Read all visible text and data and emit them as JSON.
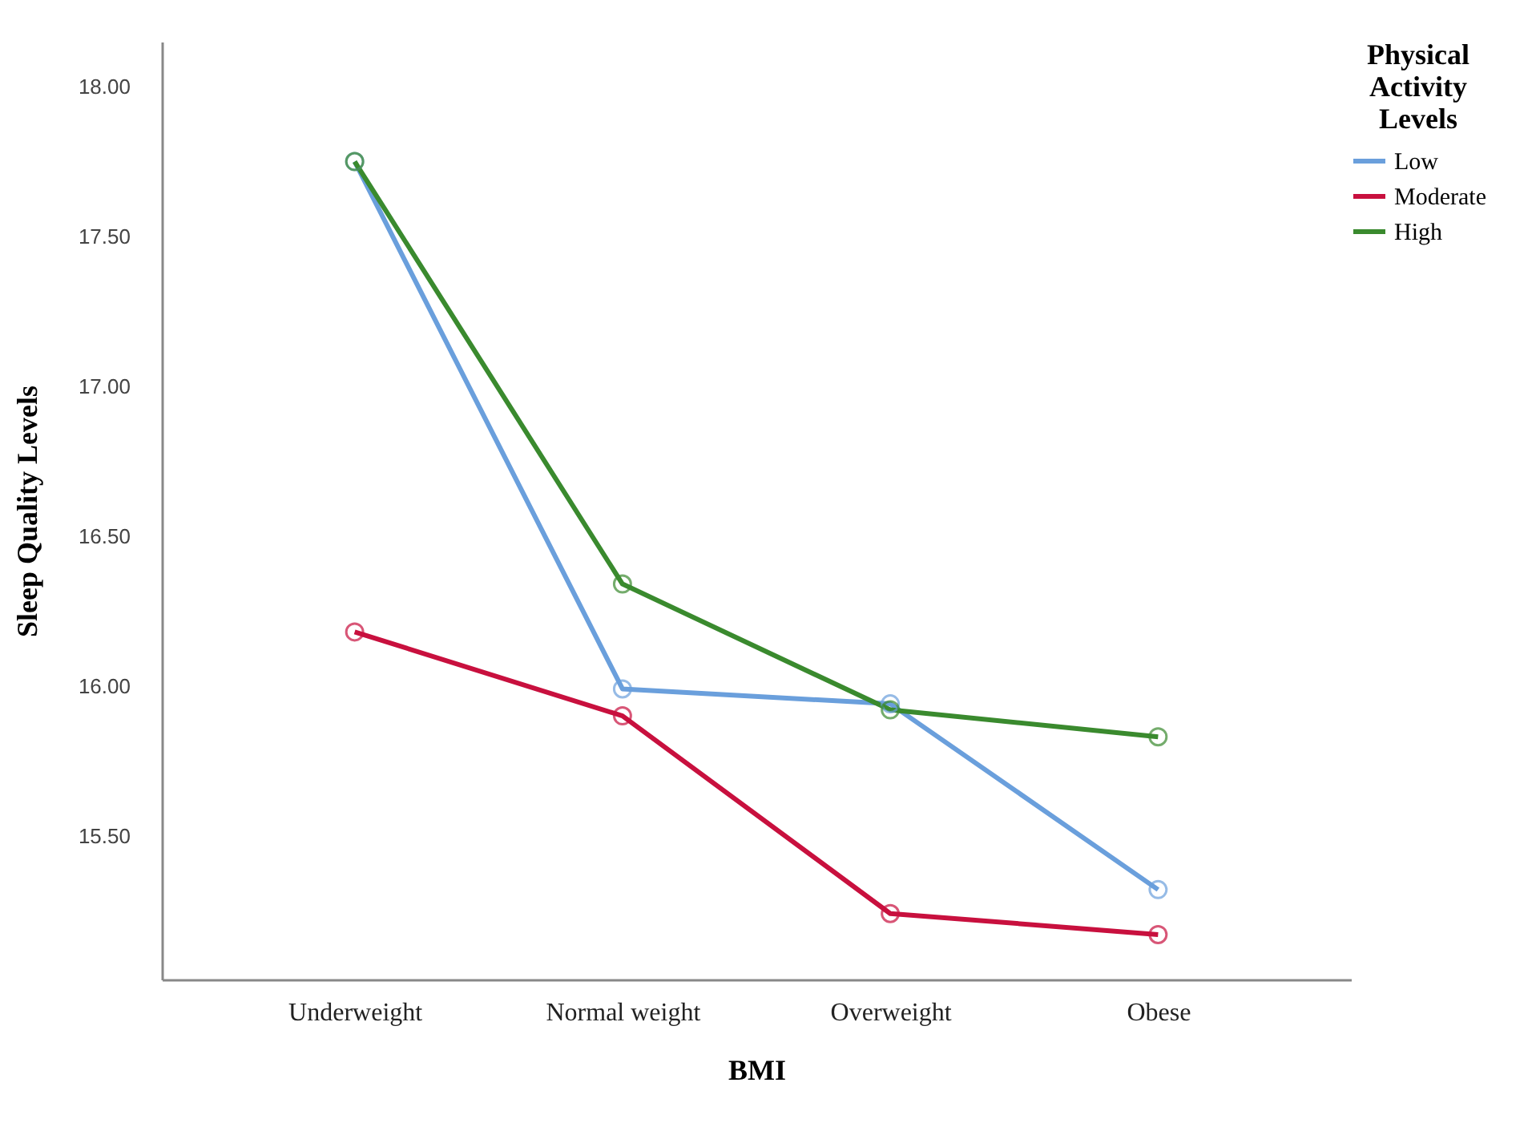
{
  "chart_data": {
    "type": "line",
    "xlabel": "BMI",
    "ylabel": "Sleep Quality Levels",
    "legend_title": "Physical Activity Levels",
    "categories": [
      "Underweight",
      "Normal weight",
      "Overweight",
      "Obese"
    ],
    "series": [
      {
        "name": "Low",
        "color": "#6a9fdc",
        "values": [
          17.75,
          15.99,
          15.94,
          15.32
        ]
      },
      {
        "name": "Moderate",
        "color": "#c8103e",
        "values": [
          16.18,
          15.9,
          15.24,
          15.17
        ]
      },
      {
        "name": "High",
        "color": "#3a8a2e",
        "values": [
          17.75,
          16.34,
          15.92,
          15.83
        ]
      }
    ],
    "ylim": [
      15.02,
      18.15
    ],
    "yticks": [
      {
        "value": 15.5,
        "label": "15.50"
      },
      {
        "value": 16,
        "label": "16.00"
      },
      {
        "value": 16.5,
        "label": "16.50"
      },
      {
        "value": 17,
        "label": "17.00"
      },
      {
        "value": 17.5,
        "label": "17.50"
      },
      {
        "value": 18,
        "label": "18.00"
      }
    ],
    "grid": false,
    "legend": "top right",
    "marker": "circle",
    "line_style": "solid"
  }
}
